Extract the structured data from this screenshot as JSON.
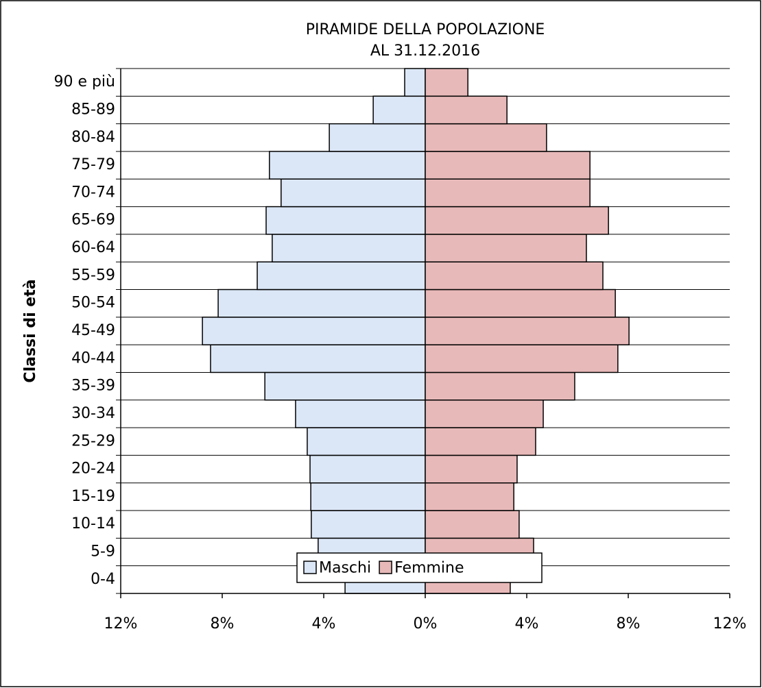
{
  "chart_data": {
    "type": "pyramid",
    "title": "PIRAMIDE DELLA POPOLAZIONE",
    "subtitle": "AL 31.12.2016",
    "y_label": "Classi di età",
    "categories": [
      "0-4",
      "5-9",
      "10-14",
      "15-19",
      "20-24",
      "25-29",
      "30-34",
      "35-39",
      "40-44",
      "45-49",
      "50-54",
      "55-59",
      "60-64",
      "65-69",
      "70-74",
      "75-79",
      "80-84",
      "85-89",
      "90 e più"
    ],
    "series": [
      {
        "name": "Maschi",
        "color": "#dbe7f7",
        "values": [
          -3.16,
          -4.22,
          -4.49,
          -4.51,
          -4.54,
          -4.65,
          -5.11,
          -6.32,
          -8.46,
          -8.78,
          -8.16,
          -6.62,
          -6.03,
          -6.27,
          -5.68,
          -6.14,
          -3.78,
          -2.05,
          -0.81
        ]
      },
      {
        "name": "Femmine",
        "color": "#e8b9b9",
        "values": [
          3.35,
          4.27,
          3.7,
          3.49,
          3.62,
          4.35,
          4.65,
          5.89,
          7.59,
          8.03,
          7.49,
          7.0,
          6.35,
          7.22,
          6.49,
          6.49,
          4.78,
          3.22,
          1.68
        ]
      }
    ],
    "xlim": [
      -12,
      12
    ],
    "xticks": [
      {
        "value": -12,
        "label": "12%"
      },
      {
        "value": -8,
        "label": "8%"
      },
      {
        "value": -4,
        "label": "4%"
      },
      {
        "value": 0,
        "label": "0%"
      },
      {
        "value": 4,
        "label": "4%"
      },
      {
        "value": 8,
        "label": "8%"
      },
      {
        "value": 12,
        "label": "12%"
      }
    ],
    "legend": "bottom"
  }
}
